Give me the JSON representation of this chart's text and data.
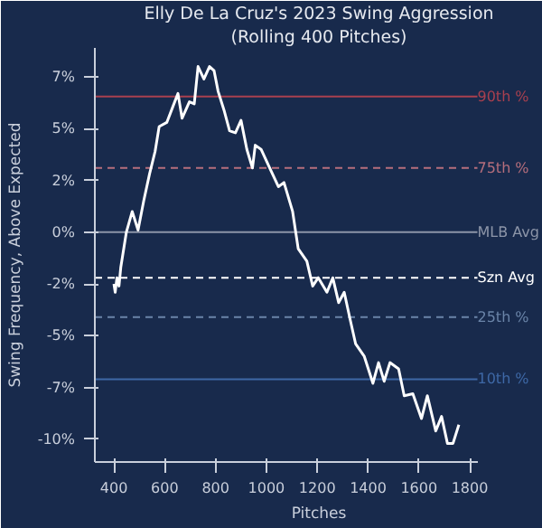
{
  "chart_data": {
    "type": "line",
    "title": "Elly De La Cruz's 2023 Swing Aggression",
    "subtitle": "(Rolling 400 Pitches)",
    "xlabel": "Pitches",
    "ylabel": "Swing Frequency, Above Expected",
    "xlim": [
      325,
      1830
    ],
    "ylim": [
      -11.1,
      8.9
    ],
    "xticks": [
      400,
      600,
      800,
      1000,
      1200,
      1400,
      1600,
      1800
    ],
    "yticks": [
      {
        "value": 7.5,
        "label": "7%"
      },
      {
        "value": 5,
        "label": "5%"
      },
      {
        "value": 2.5,
        "label": "2%"
      },
      {
        "value": 0,
        "label": "0%"
      },
      {
        "value": -2.5,
        "label": "-2%"
      },
      {
        "value": -5,
        "label": "-5%"
      },
      {
        "value": -7.5,
        "label": "-7%"
      },
      {
        "value": -10,
        "label": "-10%"
      }
    ],
    "grid": false,
    "marker": "none",
    "line_style": "solid",
    "series": [
      {
        "color": "#ffffff",
        "x": [
          400,
          405,
          412,
          420,
          427,
          449,
          472,
          495,
          517,
          540,
          562,
          578,
          608,
          630,
          652,
          668,
          697,
          716,
          731,
          754,
          776,
          794,
          810,
          833,
          855,
          878,
          900,
          923,
          945,
          956,
          979,
          1013,
          1047,
          1069,
          1103,
          1125,
          1159,
          1182,
          1204,
          1238,
          1261,
          1284,
          1306,
          1329,
          1351,
          1385,
          1419,
          1441,
          1463,
          1486,
          1520,
          1542,
          1576,
          1610,
          1633,
          1666,
          1689,
          1712,
          1734,
          1757
        ],
        "values": [
          -2.5,
          -2.9,
          -2.2,
          -2.6,
          -1.7,
          0,
          1.0,
          0.1,
          1.5,
          2.8,
          3.9,
          5.1,
          5.3,
          6.0,
          6.7,
          5.5,
          6.3,
          6.2,
          8.0,
          7.4,
          8.0,
          7.8,
          6.8,
          5.9,
          4.9,
          4.8,
          5.4,
          4.0,
          3.1,
          4.2,
          4.0,
          3.1,
          2.2,
          2.4,
          1.0,
          -0.8,
          -1.4,
          -2.6,
          -2.2,
          -2.9,
          -2.2,
          -3.4,
          -2.9,
          -4.2,
          -5.4,
          -6.0,
          -7.3,
          -6.3,
          -7.2,
          -6.3,
          -6.6,
          -7.9,
          -7.8,
          -9.0,
          -7.9,
          -9.6,
          -8.9,
          -10.2,
          -10.2,
          -9.3
        ]
      }
    ],
    "ref_lines": [
      {
        "axis": "y",
        "value": 6.55,
        "label": "90th %",
        "color": "#a8404f",
        "line_style": "solid"
      },
      {
        "axis": "y",
        "value": 3.1,
        "label": "75th %",
        "color": "#b56e7c",
        "line_style": "dashed"
      },
      {
        "axis": "y",
        "value": 0,
        "label": "MLB Avg",
        "color": "#8c95a8",
        "line_style": "solid"
      },
      {
        "axis": "y",
        "value": -2.2,
        "label": "Szn Avg",
        "color": "#ffffff",
        "line_style": "dashed"
      },
      {
        "axis": "y",
        "value": -4.1,
        "label": "25th %",
        "color": "#6a84a8",
        "line_style": "dashed"
      },
      {
        "axis": "y",
        "value": -7.1,
        "label": "10th %",
        "color": "#3e68a6",
        "line_style": "solid"
      }
    ]
  }
}
